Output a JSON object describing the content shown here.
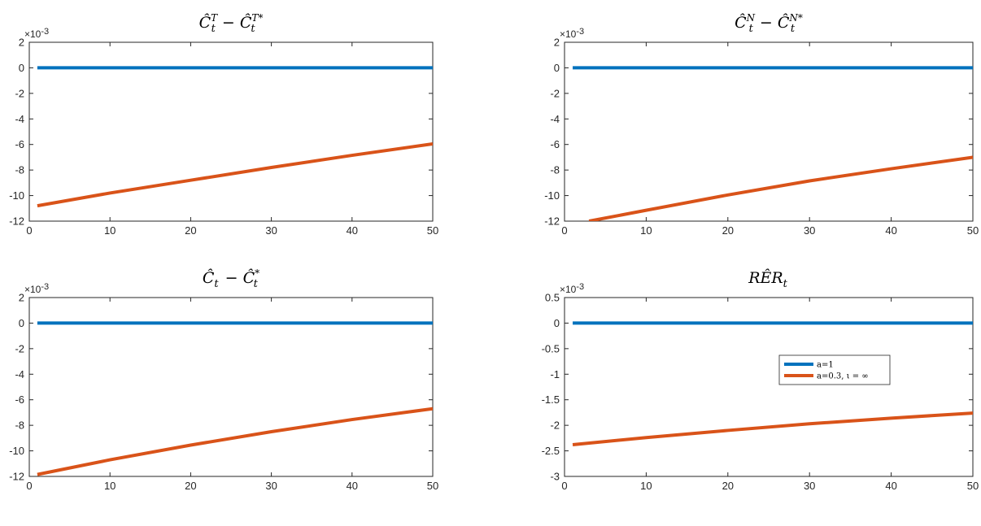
{
  "chart_data": [
    {
      "type": "line",
      "title": "Ĉ_t^T − Ĉ_t^{T*}",
      "title_parts": {
        "base1": "Ĉ",
        "sub1": "t",
        "sup1": "T",
        "op": " − ",
        "base2": "Ĉ",
        "sub2": "t",
        "sup2": "T*"
      },
      "exponent_label": "×10",
      "exponent_power": "-3",
      "xlim": [
        0,
        50
      ],
      "ylim": [
        -12,
        2
      ],
      "xticks": [
        0,
        10,
        20,
        30,
        40,
        50
      ],
      "yticks": [
        -12,
        -10,
        -8,
        -6,
        -4,
        -2,
        0,
        2
      ],
      "ytick_labels": [
        "-12",
        "-10",
        "-8",
        "-6",
        "-4",
        "-2",
        "0",
        "2"
      ],
      "series": [
        {
          "color": "#0072BD",
          "x": [
            1,
            50
          ],
          "y": [
            0,
            0
          ]
        },
        {
          "color": "#D95319",
          "x": [
            1,
            10,
            20,
            30,
            40,
            50
          ],
          "y": [
            -10.8,
            -9.8,
            -8.8,
            -7.8,
            -6.85,
            -5.95
          ]
        }
      ]
    },
    {
      "type": "line",
      "title": "Ĉ_t^N − Ĉ_t^{N*}",
      "title_parts": {
        "base1": "Ĉ",
        "sub1": "t",
        "sup1": "N",
        "op": " − ",
        "base2": "Ĉ",
        "sub2": "t",
        "sup2": "N*"
      },
      "exponent_label": "×10",
      "exponent_power": "-3",
      "xlim": [
        0,
        50
      ],
      "ylim": [
        -12,
        2
      ],
      "xticks": [
        0,
        10,
        20,
        30,
        40,
        50
      ],
      "yticks": [
        -12,
        -10,
        -8,
        -6,
        -4,
        -2,
        0,
        2
      ],
      "ytick_labels": [
        "-12",
        "-10",
        "-8",
        "-6",
        "-4",
        "-2",
        "0",
        "2"
      ],
      "series": [
        {
          "color": "#0072BD",
          "x": [
            1,
            50
          ],
          "y": [
            0,
            0
          ]
        },
        {
          "color": "#D95319",
          "x": [
            3,
            10,
            20,
            30,
            40,
            50
          ],
          "y": [
            -12.0,
            -11.15,
            -9.95,
            -8.85,
            -7.9,
            -7.0
          ]
        }
      ]
    },
    {
      "type": "line",
      "title": "Ĉ_t − Ĉ_t^*",
      "title_parts": {
        "base1": "Ĉ",
        "sub1": "t",
        "sup1": "",
        "op": " − ",
        "base2": "Ĉ",
        "sub2": "t",
        "sup2": "*"
      },
      "exponent_label": "×10",
      "exponent_power": "-3",
      "xlim": [
        0,
        50
      ],
      "ylim": [
        -12,
        2
      ],
      "xticks": [
        0,
        10,
        20,
        30,
        40,
        50
      ],
      "yticks": [
        -12,
        -10,
        -8,
        -6,
        -4,
        -2,
        0,
        2
      ],
      "ytick_labels": [
        "-12",
        "-10",
        "-8",
        "-6",
        "-4",
        "-2",
        "0",
        "2"
      ],
      "series": [
        {
          "color": "#0072BD",
          "x": [
            1,
            50
          ],
          "y": [
            0,
            0
          ]
        },
        {
          "color": "#D95319",
          "x": [
            1,
            10,
            20,
            30,
            40,
            50
          ],
          "y": [
            -11.85,
            -10.7,
            -9.55,
            -8.5,
            -7.55,
            -6.7
          ]
        }
      ]
    },
    {
      "type": "line",
      "title": "RÊR_t",
      "title_parts": {
        "base1": "RÊR",
        "sub1": "t",
        "sup1": "",
        "op": "",
        "base2": "",
        "sub2": "",
        "sup2": ""
      },
      "exponent_label": "×10",
      "exponent_power": "-3",
      "xlim": [
        0,
        50
      ],
      "ylim": [
        -3,
        0.5
      ],
      "xticks": [
        0,
        10,
        20,
        30,
        40,
        50
      ],
      "yticks": [
        -3,
        -2.5,
        -2,
        -1.5,
        -1,
        -0.5,
        0,
        0.5
      ],
      "ytick_labels": [
        "-3",
        "-2.5",
        "-2",
        "-1.5",
        "-1",
        "-0.5",
        "0",
        "0.5"
      ],
      "legend": {
        "placement": "center-right",
        "entries": [
          "a=1",
          "a=0.3, ι = ∞"
        ]
      },
      "series": [
        {
          "name": "a=1",
          "color": "#0072BD",
          "x": [
            1,
            50
          ],
          "y": [
            0,
            0
          ]
        },
        {
          "name": "a=0.3, ι = ∞",
          "color": "#D95319",
          "x": [
            1,
            10,
            20,
            30,
            40,
            50
          ],
          "y": [
            -2.38,
            -2.24,
            -2.1,
            -1.97,
            -1.86,
            -1.76
          ]
        }
      ]
    }
  ]
}
